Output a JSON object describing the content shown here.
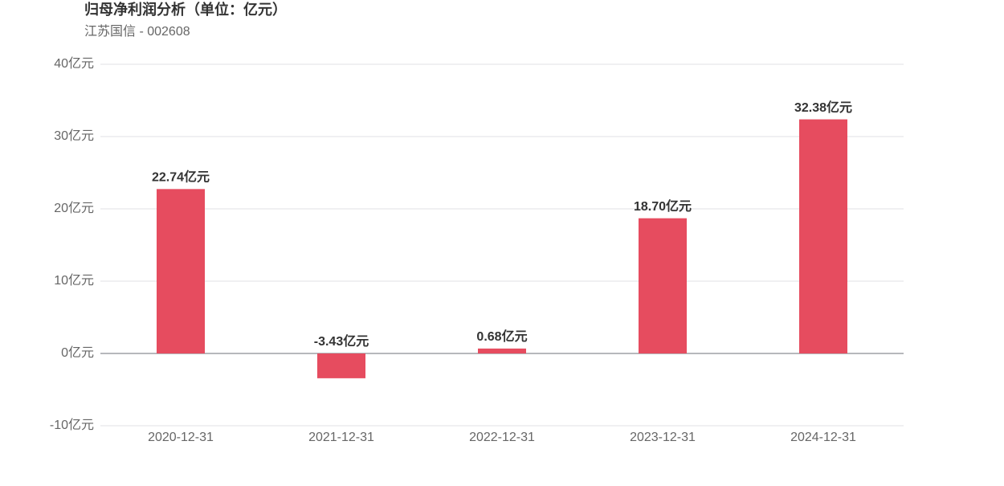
{
  "chart_data": {
    "type": "bar",
    "title": "归母净利润分析（单位：亿元）",
    "subtitle": "江苏国信 - 002608",
    "categories": [
      "2020-12-31",
      "2021-12-31",
      "2022-12-31",
      "2023-12-31",
      "2024-12-31"
    ],
    "values": [
      22.74,
      -3.43,
      0.68,
      18.7,
      32.38
    ],
    "value_labels": [
      "22.74亿元",
      "-3.43亿元",
      "0.68亿元",
      "18.70亿元",
      "32.38亿元"
    ],
    "color": "#e64c5f",
    "ylim": [
      -10,
      40
    ],
    "yticks": [
      {
        "value": -10,
        "label": "-10亿元"
      },
      {
        "value": 0,
        "label": "0亿元"
      },
      {
        "value": 10,
        "label": "10亿元"
      },
      {
        "value": 20,
        "label": "20亿元"
      },
      {
        "value": 30,
        "label": "30亿元"
      },
      {
        "value": 40,
        "label": "40亿元"
      }
    ],
    "grid": true
  }
}
